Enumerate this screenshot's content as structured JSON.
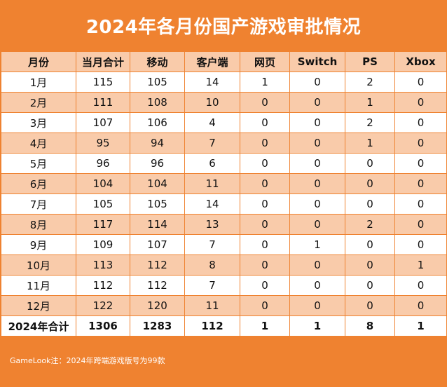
{
  "title": "2024年各月份国产游戏审批情况",
  "table": {
    "headers": [
      "月份",
      "当月合计",
      "移动",
      "客户端",
      "网页",
      "Switch",
      "PS",
      "Xbox"
    ],
    "rows": [
      [
        "1月",
        "115",
        "105",
        "14",
        "1",
        "0",
        "2",
        "0"
      ],
      [
        "2月",
        "111",
        "108",
        "10",
        "0",
        "0",
        "1",
        "0"
      ],
      [
        "3月",
        "107",
        "106",
        "4",
        "0",
        "0",
        "2",
        "0"
      ],
      [
        "4月",
        "95",
        "94",
        "7",
        "0",
        "0",
        "1",
        "0"
      ],
      [
        "5月",
        "96",
        "96",
        "6",
        "0",
        "0",
        "0",
        "0"
      ],
      [
        "6月",
        "104",
        "104",
        "11",
        "0",
        "0",
        "0",
        "0"
      ],
      [
        "7月",
        "105",
        "105",
        "14",
        "0",
        "0",
        "0",
        "0"
      ],
      [
        "8月",
        "117",
        "114",
        "13",
        "0",
        "0",
        "2",
        "0"
      ],
      [
        "9月",
        "109",
        "107",
        "7",
        "0",
        "1",
        "0",
        "0"
      ],
      [
        "10月",
        "113",
        "112",
        "8",
        "0",
        "0",
        "0",
        "1"
      ],
      [
        "11月",
        "112",
        "112",
        "7",
        "0",
        "0",
        "0",
        "0"
      ],
      [
        "12月",
        "122",
        "120",
        "11",
        "0",
        "0",
        "0",
        "0"
      ]
    ],
    "total": [
      "2024年合计",
      "1306",
      "1283",
      "112",
      "1",
      "1",
      "8",
      "1"
    ]
  },
  "footnote": "GameLook注：2024年跨端游戏版号为99款",
  "colors": {
    "accent": "#ef8230",
    "band": "#f9cbaa",
    "title_text": "#ffffff"
  }
}
